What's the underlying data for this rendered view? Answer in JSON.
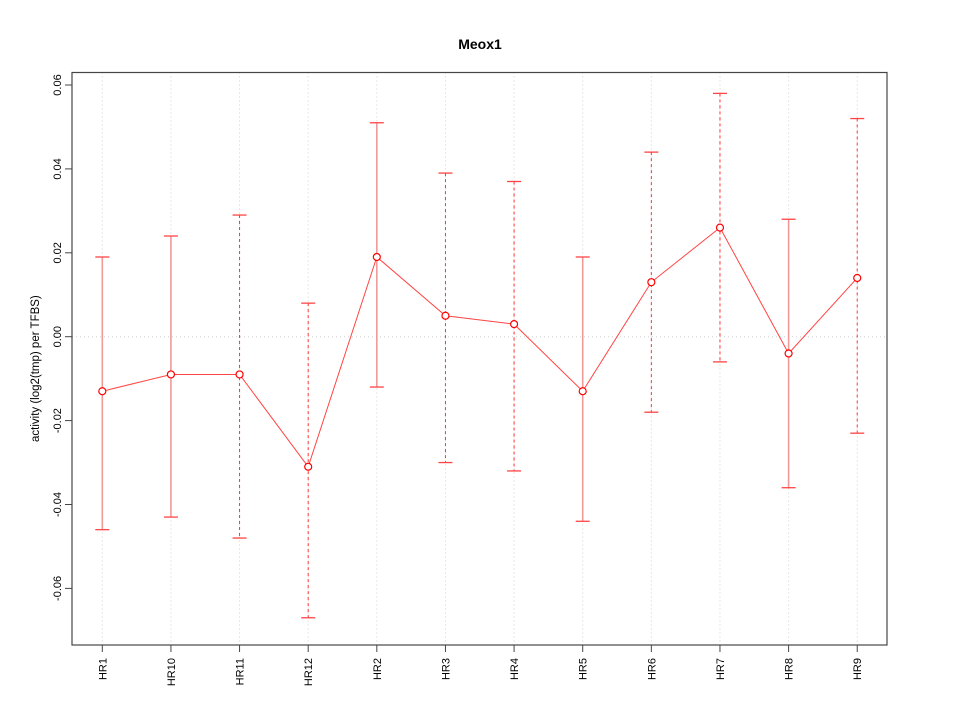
{
  "chart_data": {
    "type": "line",
    "title": "Meox1",
    "xlabel": "",
    "ylabel": "activity (log2(tmp) per TFBS)",
    "marker": "open-circle",
    "legend": "none",
    "grid": "dotted vertical gridline at each category; dotted horizontal line at y=0",
    "categories": [
      "HR1",
      "HR10",
      "HR11",
      "HR12",
      "HR2",
      "HR3",
      "HR4",
      "HR5",
      "HR6",
      "HR7",
      "HR8",
      "HR9"
    ],
    "values": [
      -0.013,
      -0.009,
      -0.009,
      -0.031,
      0.019,
      0.005,
      0.003,
      -0.013,
      0.013,
      0.026,
      -0.004,
      0.014
    ],
    "error_high": [
      0.019,
      0.024,
      0.029,
      0.008,
      0.051,
      0.039,
      0.037,
      0.019,
      0.044,
      0.058,
      0.028,
      0.052
    ],
    "error_low": [
      -0.046,
      -0.043,
      -0.048,
      -0.067,
      -0.012,
      -0.03,
      -0.032,
      -0.044,
      -0.018,
      -0.006,
      -0.036,
      -0.023
    ],
    "bar_styles": [
      "solid",
      "solid",
      "dashed",
      "dashed",
      "solid",
      "dashed",
      "dashed",
      "solid",
      "dashed",
      "dashed",
      "solid",
      "dashed"
    ],
    "yticks": [
      -0.06,
      -0.04,
      -0.02,
      0.0,
      0.02,
      0.04,
      0.06
    ],
    "ylim": [
      -0.073,
      0.063
    ],
    "colors": {
      "point": "#ff0000",
      "line": "#ff4444",
      "errorbar_solid": "#f09a9a",
      "errorbar_dashed": "#ff3333",
      "cap": "#ff4444",
      "grid": "#d0d0d0",
      "axis": "#454545",
      "text": "#000000",
      "background": "#ffffff"
    }
  }
}
